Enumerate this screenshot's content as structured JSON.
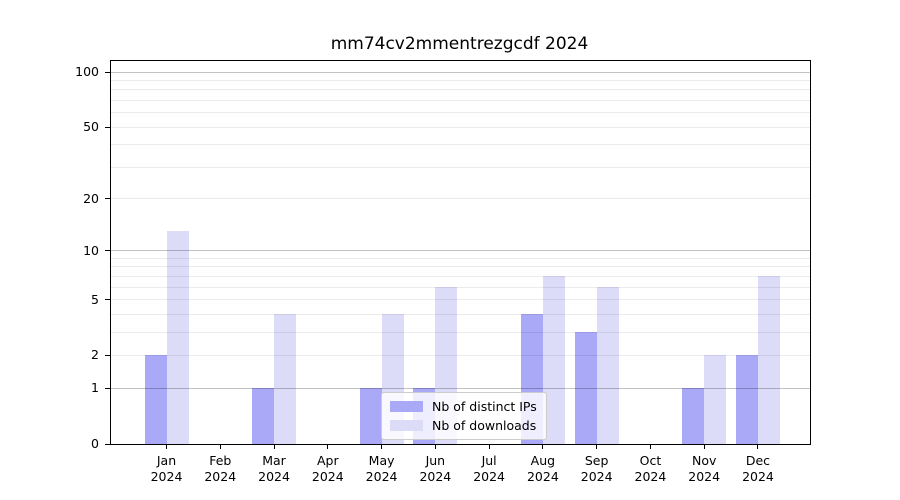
{
  "title": "mm74cv2mmentrezgcdf 2024",
  "chart_data": {
    "type": "bar",
    "title": "mm74cv2mmentrezgcdf 2024",
    "categories": [
      "Jan 2024",
      "Feb 2024",
      "Mar 2024",
      "Apr 2024",
      "May 2024",
      "Jun 2024",
      "Jul 2024",
      "Aug 2024",
      "Sep 2024",
      "Oct 2024",
      "Nov 2024",
      "Dec 2024"
    ],
    "series": [
      {
        "name": "Nb of distinct IPs",
        "color": "#a9a9f7",
        "values": [
          2,
          0,
          1,
          0,
          1,
          1,
          0,
          4,
          3,
          0,
          1,
          2
        ]
      },
      {
        "name": "Nb of downloads",
        "color": "#dcdcf9",
        "values": [
          13,
          0,
          4,
          0,
          4,
          6,
          0,
          7,
          6,
          0,
          2,
          7
        ]
      }
    ],
    "xlabel": "",
    "ylabel": "",
    "yscale": "log1p",
    "ylim": [
      0,
      115
    ],
    "y_ticks": [
      0,
      1,
      2,
      5,
      10,
      20,
      50,
      100
    ],
    "grid": {
      "major": [
        1,
        10,
        100
      ],
      "minor": [
        2,
        3,
        4,
        5,
        6,
        7,
        8,
        9,
        20,
        30,
        40,
        50,
        60,
        70,
        80,
        90
      ]
    },
    "legend": {
      "position": "lower-center",
      "entries": [
        "Nb of distinct IPs",
        "Nb of downloads"
      ]
    }
  }
}
